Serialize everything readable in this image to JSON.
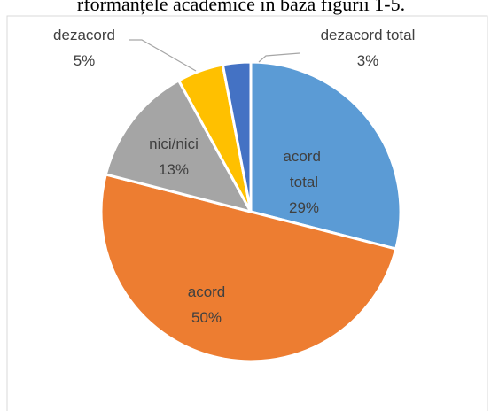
{
  "chart_data": {
    "type": "pie",
    "title": "rformanțele academice în baza figurii 1-5.",
    "categories": [
      "acord total",
      "acord",
      "nici/nici",
      "dezacord",
      "dezacord total"
    ],
    "values": [
      29,
      50,
      13,
      5,
      3
    ],
    "value_labels": [
      "29%",
      "50%",
      "13%",
      "5%",
      "3%"
    ],
    "colors": [
      "#5b9bd5",
      "#ed7d31",
      "#a5a5a5",
      "#ffc000",
      "#4472c4"
    ]
  }
}
